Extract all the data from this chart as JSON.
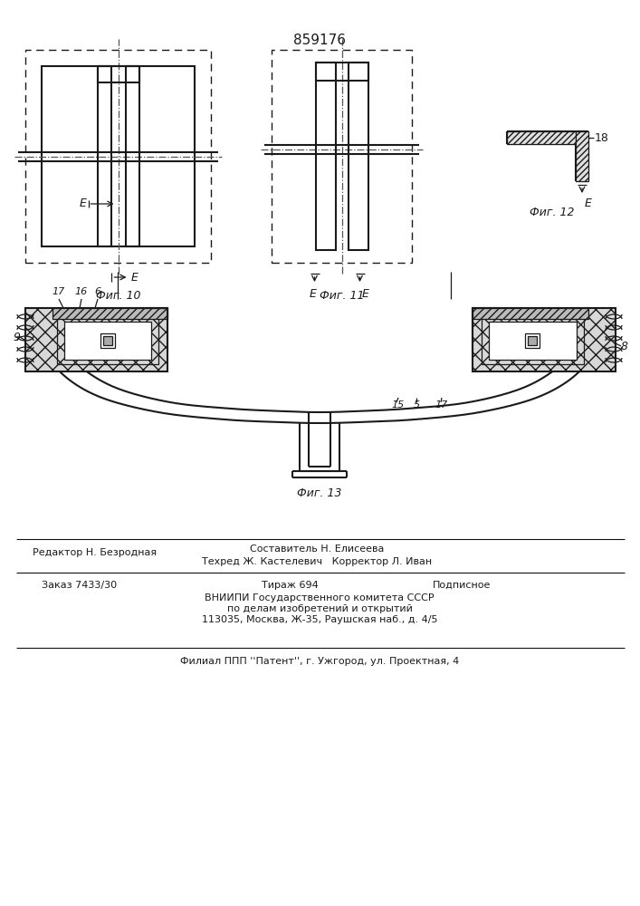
{
  "patent_number": "859176",
  "fig10_label": "Фиг. 10",
  "fig11_label": "Фиг. 11",
  "fig12_label": "Фиг. 12",
  "fig13_label": "Фиг. 13",
  "editor_line": "Редактор Н. Безродная",
  "composer_line": "Составитель Н. Елисеева",
  "techred_line": "Техред Ж. Кастелевич",
  "corrector_line": "Корректор Л. Иван",
  "order_line": "Заказ 7433/30",
  "print_line": "Тираж 694",
  "podpisnoe": "Подписное",
  "vnipi_line1": "ВНИИПИ Государственного комитета СССР",
  "vnipi_line2": "по делам изобретений и открытий",
  "vnipi_line3": "113035, Москва, Ж-35, Раушская наб., д. 4/5",
  "filial_line": "Филиал ППП ''Патент'', г. Ужгород, ул. Проектная, 4",
  "bg_color": "#ffffff",
  "line_color": "#1a1a1a"
}
